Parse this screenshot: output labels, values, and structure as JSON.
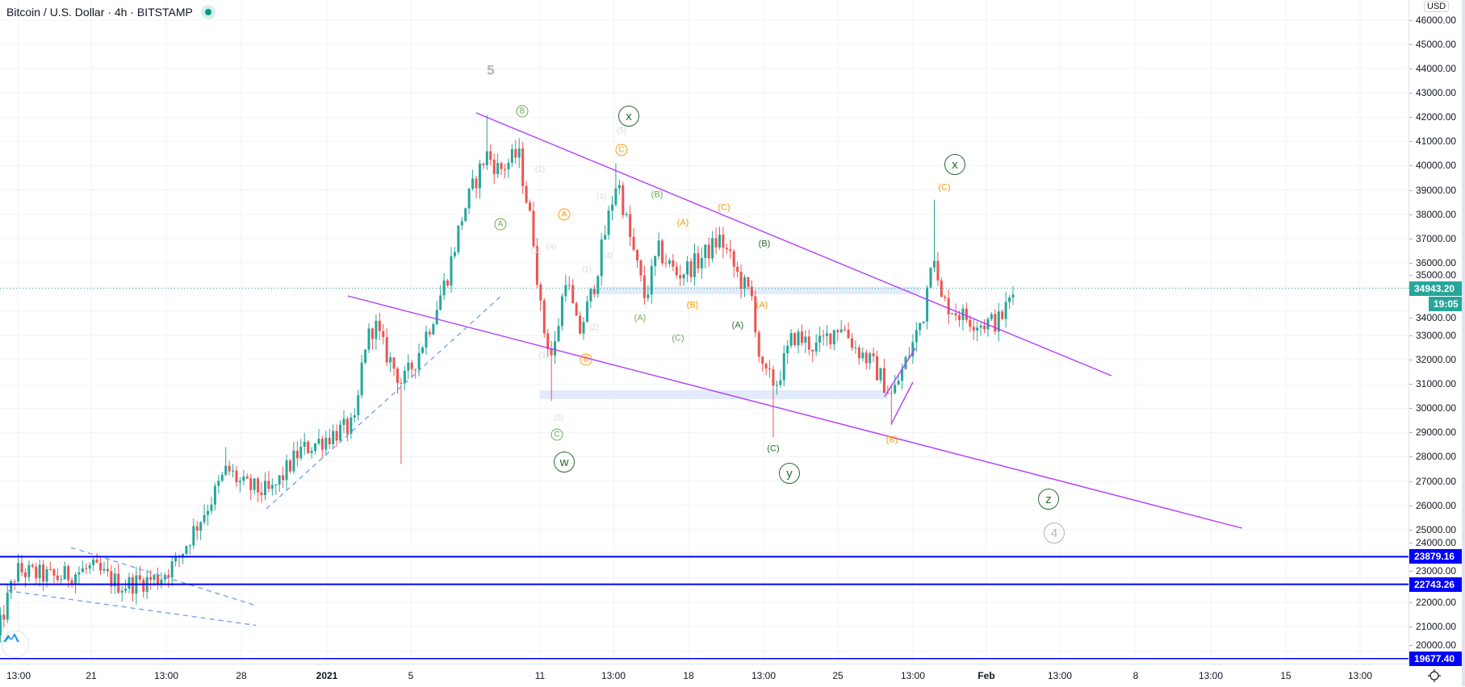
{
  "header": {
    "symbol": "Bitcoin / U.S. Dollar",
    "interval": "4h",
    "exchange": "BITSTAMP",
    "separator": "·",
    "status": "market-open"
  },
  "price_axis": {
    "currency": "USD",
    "ticks": [
      "20000.00",
      "21000.00",
      "22000.00",
      "23000.00",
      "24000.00",
      "25000.00",
      "26000.00",
      "27000.00",
      "28000.00",
      "29000.00",
      "30000.00",
      "31000.00",
      "32000.00",
      "33000.00",
      "34000.00",
      "35000.00",
      "36000.00",
      "37000.00",
      "38000.00",
      "39000.00",
      "40000.00",
      "41000.00",
      "42000.00",
      "43000.00",
      "44000.00",
      "45000.00",
      "46000.00"
    ],
    "last_price": "34943.20",
    "countdown": "19:05",
    "levels": [
      "23879.16",
      "22743.26",
      "19677.40"
    ]
  },
  "time_axis": {
    "labels": [
      "13:00",
      "21",
      "13:00",
      "28",
      "2021",
      "5",
      "11",
      "13:00",
      "18",
      "13:00",
      "25",
      "13:00",
      "Feb",
      "13:00",
      "8",
      "13:00",
      "15",
      "13:00"
    ]
  },
  "colors": {
    "up": "#26a69a",
    "down": "#ef5350",
    "last_price": "#26a69a",
    "level": "#0000ff",
    "trendline": "#b23cfd",
    "dashed": "#6f9cf0",
    "zone": "#dfe9fb",
    "orange": "#ff9800",
    "green": "#6aaa55",
    "darkgreen": "#2b6a33",
    "gray": "#b2b5be"
  },
  "wave_labels": [
    "5",
    "B",
    "A",
    "x",
    "(5)",
    "C",
    "(2)",
    "A",
    "(3)",
    "(B)",
    "(A)",
    "(C)",
    "(B)",
    "(B)",
    "(A)",
    "(C)",
    "(A)",
    "(A)",
    "B",
    "C",
    "w",
    "(C)",
    "y",
    "(B)",
    "x",
    "(C)",
    "z",
    "4",
    "(1)",
    "(4)",
    "(4)",
    "(1)",
    "(2)",
    "(3)",
    "(5)"
  ],
  "chart_data": {
    "type": "candlestick",
    "title": "Bitcoin / U.S. Dollar · 4h · BITSTAMP",
    "x_unit": "days since 2020-12-21 00:00",
    "bar_interval_hours": 4,
    "ylim": [
      19200,
      46800
    ],
    "grid": true,
    "price_path": [
      [
        -4.4,
        20500
      ],
      [
        -4.0,
        21800
      ],
      [
        -3.5,
        23300
      ],
      [
        -1.6,
        23000
      ],
      [
        0,
        23400
      ],
      [
        1.4,
        22700
      ],
      [
        3.15,
        23000
      ],
      [
        4.0,
        23700
      ],
      [
        4.67,
        24800
      ],
      [
        5.76,
        26500
      ],
      [
        6.33,
        27500
      ],
      [
        7.07,
        26800
      ],
      [
        8.37,
        26500
      ],
      [
        9.68,
        28200
      ],
      [
        11.4,
        29000
      ],
      [
        12.3,
        29300
      ],
      [
        12.7,
        32500
      ],
      [
        13.2,
        33500
      ],
      [
        13.6,
        32500
      ],
      [
        14.5,
        31000
      ],
      [
        15.1,
        32000
      ],
      [
        15.8,
        33500
      ],
      [
        16.6,
        35500
      ],
      [
        17.3,
        38000
      ],
      [
        17.95,
        39500
      ],
      [
        18.4,
        40500
      ],
      [
        19.0,
        39800
      ],
      [
        19.9,
        40500
      ],
      [
        20.6,
        37000
      ],
      [
        21.0,
        33500
      ],
      [
        21.5,
        32000
      ],
      [
        22.1,
        35500
      ],
      [
        22.7,
        33000
      ],
      [
        23.4,
        35000
      ],
      [
        24.0,
        37500
      ],
      [
        24.5,
        39500
      ],
      [
        25.1,
        37000
      ],
      [
        25.8,
        34500
      ],
      [
        26.4,
        36500
      ],
      [
        27.3,
        35500
      ],
      [
        28.2,
        36000
      ],
      [
        29.3,
        37000
      ],
      [
        30.1,
        35500
      ],
      [
        30.8,
        34500
      ],
      [
        31.2,
        31500
      ],
      [
        31.9,
        31000
      ],
      [
        32.7,
        33000
      ],
      [
        33.8,
        32500
      ],
      [
        34.9,
        33500
      ],
      [
        35.6,
        32500
      ],
      [
        36.4,
        31800
      ],
      [
        37.3,
        30500
      ],
      [
        38.2,
        32500
      ],
      [
        38.8,
        34000
      ],
      [
        39.2,
        37000
      ],
      [
        39.5,
        34500
      ],
      [
        40.6,
        33800
      ],
      [
        41.4,
        33500
      ],
      [
        42.3,
        33600
      ],
      [
        43.05,
        34943.2
      ]
    ],
    "wicks": [
      [
        6.33,
        28400,
        "high"
      ],
      [
        14.4,
        27700,
        "low"
      ],
      [
        18.4,
        42100,
        "high"
      ],
      [
        21.5,
        30300,
        "low"
      ],
      [
        24.5,
        40100,
        "high"
      ],
      [
        31.7,
        28800,
        "low"
      ],
      [
        37.2,
        29300,
        "low"
      ],
      [
        39.3,
        38600,
        "high"
      ],
      [
        43.05,
        35700,
        "high"
      ]
    ],
    "trendlines": [
      {
        "name": "upper-wedge",
        "from": [
          17.93,
          42177
        ],
        "to": [
          47.52,
          31339
        ],
        "style": "solid"
      },
      {
        "name": "lower-wedge",
        "from": [
          11.95,
          34630
        ],
        "to": [
          53.6,
          25056
        ],
        "style": "solid"
      },
      {
        "name": "small-channel-upper",
        "from": [
          36.95,
          30475
        ],
        "to": [
          38.38,
          32470
        ],
        "style": "solid"
      },
      {
        "name": "small-channel-lower",
        "from": [
          37.26,
          29344
        ],
        "to": [
          38.27,
          31073
        ],
        "style": "solid"
      },
      {
        "name": "support-dashed",
        "from": [
          8.16,
          25854
        ],
        "to": [
          19.14,
          34664
        ],
        "style": "dashed"
      },
      {
        "name": "left-dashed-1",
        "from": [
          -0.94,
          24258
        ],
        "to": [
          7.67,
          21864
        ],
        "style": "dashed"
      },
      {
        "name": "left-dashed-2",
        "from": [
          -3.91,
          22480
        ],
        "to": [
          7.67,
          21050
        ],
        "style": "dashed"
      }
    ],
    "zones": [
      {
        "from_day": 23.2,
        "to_day": 38.6,
        "low": 34700,
        "high": 35000
      },
      {
        "from_day": 20.9,
        "to_day": 37.1,
        "low": 30375,
        "high": 30740
      }
    ],
    "horizontal_levels": [
      23879.16,
      22743.26,
      19677.4
    ],
    "last_price": 34943.2
  }
}
